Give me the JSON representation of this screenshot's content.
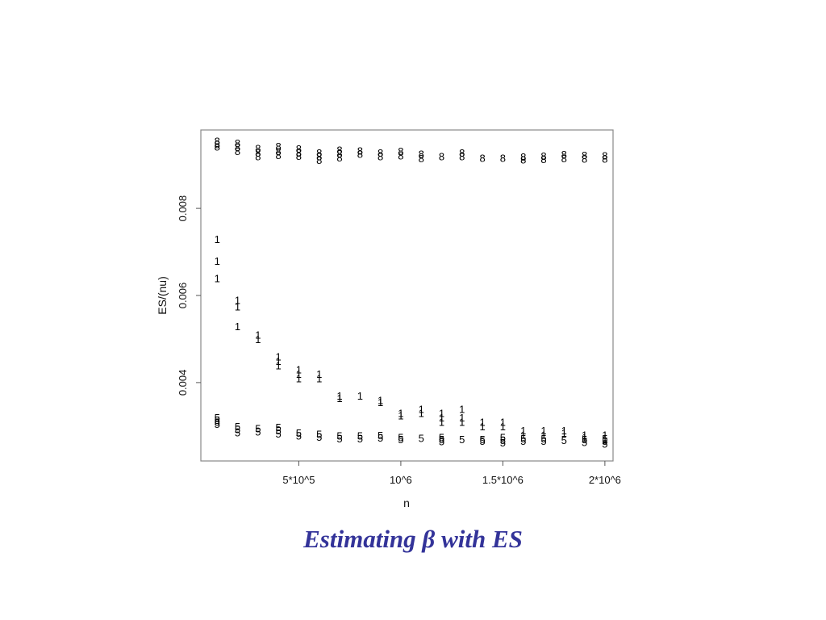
{
  "caption": {
    "before": "Estimating",
    "symbol": "β",
    "after": "with ES"
  },
  "chart_data": {
    "type": "scatter",
    "title": "",
    "xlabel": "n",
    "ylabel": "ES/(nu)",
    "xlim": [
      20000,
      2040000
    ],
    "ylim": [
      0.0022,
      0.0098
    ],
    "xticks": [
      {
        "value": 500000,
        "label": "5*10^5"
      },
      {
        "value": 1000000,
        "label": "10^6"
      },
      {
        "value": 1500000,
        "label": "1.5*10^6"
      },
      {
        "value": 2000000,
        "label": "2*10^6"
      }
    ],
    "yticks": [
      {
        "value": 0.004,
        "label": "0.004"
      },
      {
        "value": 0.006,
        "label": "0.006"
      },
      {
        "value": 0.008,
        "label": "0.008"
      }
    ],
    "grid": false,
    "legend": "none",
    "series": [
      {
        "marker": "8",
        "points": [
          [
            100000,
            0.00955
          ],
          [
            100000,
            0.00948
          ],
          [
            100000,
            0.00942
          ],
          [
            200000,
            0.0095
          ],
          [
            200000,
            0.00941
          ],
          [
            200000,
            0.00932
          ],
          [
            300000,
            0.00938
          ],
          [
            300000,
            0.00928
          ],
          [
            300000,
            0.0092
          ],
          [
            400000,
            0.00943
          ],
          [
            400000,
            0.00932
          ],
          [
            400000,
            0.00923
          ],
          [
            500000,
            0.00937
          ],
          [
            500000,
            0.00928
          ],
          [
            500000,
            0.00921
          ],
          [
            600000,
            0.00928
          ],
          [
            600000,
            0.0092
          ],
          [
            600000,
            0.00911
          ],
          [
            700000,
            0.00935
          ],
          [
            700000,
            0.00926
          ],
          [
            700000,
            0.00917
          ],
          [
            800000,
            0.00933
          ],
          [
            800000,
            0.00925
          ],
          [
            900000,
            0.00928
          ],
          [
            900000,
            0.0092
          ],
          [
            1000000,
            0.00932
          ],
          [
            1000000,
            0.00922
          ],
          [
            1100000,
            0.00925
          ],
          [
            1100000,
            0.00915
          ],
          [
            1200000,
            0.0092
          ],
          [
            1300000,
            0.00928
          ],
          [
            1300000,
            0.0092
          ],
          [
            1400000,
            0.00916
          ],
          [
            1500000,
            0.00916
          ],
          [
            1600000,
            0.00919
          ],
          [
            1600000,
            0.00912
          ],
          [
            1700000,
            0.00921
          ],
          [
            1700000,
            0.00913
          ],
          [
            1800000,
            0.00924
          ],
          [
            1800000,
            0.00915
          ],
          [
            1900000,
            0.00923
          ],
          [
            1900000,
            0.00914
          ],
          [
            2000000,
            0.00922
          ],
          [
            2000000,
            0.00914
          ]
        ]
      },
      {
        "marker": "1",
        "points": [
          [
            100000,
            0.0073
          ],
          [
            100000,
            0.0068
          ],
          [
            100000,
            0.0064
          ],
          [
            200000,
            0.0059
          ],
          [
            200000,
            0.00575
          ],
          [
            200000,
            0.0053
          ],
          [
            300000,
            0.0051
          ],
          [
            300000,
            0.005
          ],
          [
            400000,
            0.0046
          ],
          [
            400000,
            0.0045
          ],
          [
            400000,
            0.0044
          ],
          [
            500000,
            0.0043
          ],
          [
            500000,
            0.0042
          ],
          [
            500000,
            0.0041
          ],
          [
            600000,
            0.0042
          ],
          [
            600000,
            0.0041
          ],
          [
            700000,
            0.0037
          ],
          [
            700000,
            0.00365
          ],
          [
            800000,
            0.0037
          ],
          [
            900000,
            0.0036
          ],
          [
            900000,
            0.00355
          ],
          [
            1000000,
            0.0033
          ],
          [
            1000000,
            0.00325
          ],
          [
            1100000,
            0.0034
          ],
          [
            1100000,
            0.0033
          ],
          [
            1200000,
            0.0033
          ],
          [
            1200000,
            0.0032
          ],
          [
            1200000,
            0.0031
          ],
          [
            1300000,
            0.0034
          ],
          [
            1300000,
            0.0032
          ],
          [
            1300000,
            0.0031
          ],
          [
            1400000,
            0.0031
          ],
          [
            1400000,
            0.003
          ],
          [
            1500000,
            0.0031
          ],
          [
            1500000,
            0.003
          ],
          [
            1600000,
            0.0029
          ],
          [
            1600000,
            0.0028
          ],
          [
            1700000,
            0.0029
          ],
          [
            1700000,
            0.0028
          ],
          [
            1800000,
            0.0029
          ],
          [
            1800000,
            0.00285
          ],
          [
            1900000,
            0.0028
          ],
          [
            1900000,
            0.00275
          ],
          [
            2000000,
            0.0028
          ],
          [
            2000000,
            0.0027
          ]
        ]
      },
      {
        "marker": "5",
        "points": [
          [
            100000,
            0.0032
          ],
          [
            100000,
            0.00315
          ],
          [
            100000,
            0.0031
          ],
          [
            100000,
            0.00305
          ],
          [
            200000,
            0.003
          ],
          [
            200000,
            0.00293
          ],
          [
            200000,
            0.00286
          ],
          [
            300000,
            0.00295
          ],
          [
            300000,
            0.00288
          ],
          [
            400000,
            0.00298
          ],
          [
            400000,
            0.0029
          ],
          [
            400000,
            0.00283
          ],
          [
            500000,
            0.00285
          ],
          [
            500000,
            0.00278
          ],
          [
            600000,
            0.00282
          ],
          [
            600000,
            0.00276
          ],
          [
            700000,
            0.00278
          ],
          [
            700000,
            0.00272
          ],
          [
            800000,
            0.00278
          ],
          [
            800000,
            0.00272
          ],
          [
            900000,
            0.00279
          ],
          [
            900000,
            0.00274
          ],
          [
            1000000,
            0.00275
          ],
          [
            1000000,
            0.0027
          ],
          [
            1100000,
            0.00273
          ],
          [
            1200000,
            0.00275
          ],
          [
            1200000,
            0.0027
          ],
          [
            1200000,
            0.00265
          ],
          [
            1300000,
            0.0027
          ],
          [
            1400000,
            0.0027
          ],
          [
            1400000,
            0.00266
          ],
          [
            1500000,
            0.00275
          ],
          [
            1500000,
            0.00268
          ],
          [
            1500000,
            0.00263
          ],
          [
            1600000,
            0.00272
          ],
          [
            1600000,
            0.00266
          ],
          [
            1700000,
            0.00272
          ],
          [
            1700000,
            0.00266
          ],
          [
            1800000,
            0.00268
          ],
          [
            1900000,
            0.0027
          ],
          [
            1900000,
            0.00264
          ],
          [
            2000000,
            0.00272
          ],
          [
            2000000,
            0.00266
          ],
          [
            2000000,
            0.0026
          ]
        ]
      }
    ]
  }
}
